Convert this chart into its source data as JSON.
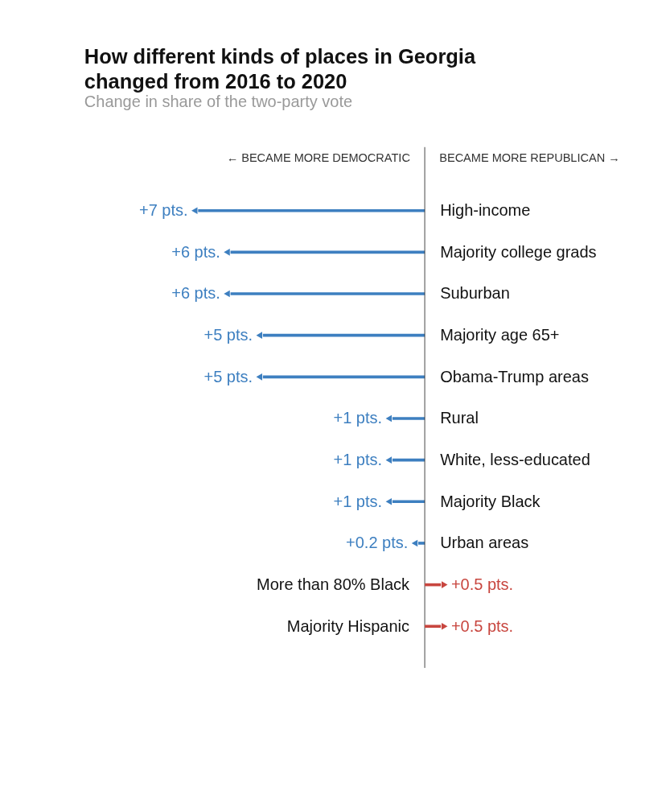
{
  "chart_data": [
    {
      "type": "bar",
      "orientation": "horizontal",
      "title": "How different kinds of places in Georgia changed from 2016 to 2020",
      "subtitle": "Change in share of the two-party vote",
      "categories": [
        "High-income",
        "Majority college grads",
        "Suburban",
        "Majority age 65+",
        "Obama-Trump areas",
        "Rural",
        "White, less-educated",
        "Majority Black",
        "Urban areas",
        null,
        null
      ],
      "values": [
        7,
        6,
        6,
        5,
        5,
        1,
        1,
        1,
        0.2,
        null,
        null
      ],
      "colors": [
        "#3d7fc0",
        "#3d7fc0",
        "#3d7fc0",
        "#3d7fc0",
        "#3d7fc0",
        "#3d7fc0",
        "#3d7fc0",
        "#3d7fc0",
        "#3d7fc0",
        "#3d7fc0",
        "#3d7fc0"
      ],
      "value_labels": [
        "+7 pts.",
        "+6 pts.",
        "+6 pts.",
        "+5 pts.",
        "+5 pts.",
        "+1 pts.",
        "+1 pts.",
        "+1 pts.",
        "+0.2 pts.",
        null,
        null
      ],
      "xlim": [
        7,
        0
      ],
      "tick_labels": false,
      "annotations": [
        "← BECAME MORE DEMOCRATIC"
      ],
      "marker": "triangle"
    },
    {
      "type": "bar",
      "orientation": "horizontal",
      "categories": [
        null,
        null,
        null,
        null,
        null,
        null,
        null,
        null,
        null,
        "More than 80% Black",
        "Majority Hispanic"
      ],
      "values": [
        null,
        null,
        null,
        null,
        null,
        null,
        null,
        null,
        null,
        0.5,
        0.5
      ],
      "colors": [
        "#c8463f",
        "#c8463f",
        "#c8463f",
        "#c8463f",
        "#c8463f",
        "#c8463f",
        "#c8463f",
        "#c8463f",
        "#c8463f",
        "#c8463f",
        "#c8463f"
      ],
      "value_labels": [
        null,
        null,
        null,
        null,
        null,
        null,
        null,
        null,
        null,
        "+0.5 pts.",
        "+0.5 pts."
      ],
      "tick_labels": false,
      "annotations": [
        "BECAME MORE REPUBLICAN →"
      ],
      "marker": "triangle"
    }
  ]
}
